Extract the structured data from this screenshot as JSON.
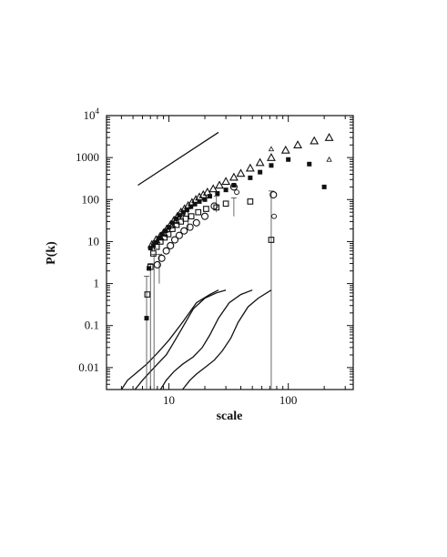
{
  "chart_data": {
    "type": "scatter",
    "xlabel": "scale",
    "ylabel": "P(k)",
    "xscale": "log",
    "yscale": "log",
    "xlim": [
      3,
      350
    ],
    "ylim": [
      0.003,
      10000
    ],
    "grid": false,
    "x_ticks": [
      {
        "value": 10,
        "label": "10"
      },
      {
        "value": 100,
        "label": "100"
      }
    ],
    "y_ticks": [
      {
        "value": 10000,
        "label": "10",
        "sup": "4"
      },
      {
        "value": 1000,
        "label": "1000"
      },
      {
        "value": 100,
        "label": "100"
      },
      {
        "value": 10,
        "label": "10"
      },
      {
        "value": 1,
        "label": "1"
      },
      {
        "value": 0.1,
        "label": "0.1"
      },
      {
        "value": 0.01,
        "label": "0.01"
      }
    ],
    "series": [
      {
        "marker": "triangle-open",
        "x": [
          7.2,
          7.8,
          8.4,
          9.0,
          9.6,
          10.3,
          11.0,
          11.8,
          12.6,
          13.5,
          14.5,
          15.6,
          16.8,
          18.0,
          19.4,
          21.0,
          23.5,
          26.5,
          30,
          35,
          40,
          48,
          58,
          72,
          95,
          120,
          165,
          220
        ],
        "y": [
          8.5,
          11,
          13,
          16,
          20,
          25,
          32,
          40,
          50,
          60,
          72,
          85,
          100,
          115,
          130,
          150,
          180,
          220,
          270,
          340,
          420,
          560,
          760,
          1000,
          1500,
          2000,
          2500,
          3000
        ]
      },
      {
        "marker": "triangle-open-small",
        "x": [
          72,
          220
        ],
        "y": [
          1600,
          900
        ]
      },
      {
        "marker": "square-filled",
        "x": [
          6.5,
          6.8,
          7.0,
          7.4,
          7.8,
          8.3,
          8.8,
          9.4,
          10.0,
          10.7,
          11.5,
          12.3,
          13.2,
          14.2,
          15.3,
          16.5,
          18.0,
          20.0,
          22.0,
          25.5,
          30,
          35,
          48,
          58,
          72,
          100,
          150,
          200
        ],
        "y": [
          0.15,
          2.3,
          7,
          8,
          9.5,
          12,
          15,
          18,
          22,
          28,
          35,
          42,
          50,
          58,
          68,
          78,
          90,
          100,
          120,
          140,
          170,
          220,
          330,
          450,
          650,
          900,
          700,
          200
        ]
      },
      {
        "marker": "square-open",
        "x": [
          6.6,
          7.0,
          7.4,
          7.9,
          8.5,
          9.2,
          9.9,
          10.7,
          11.6,
          12.6,
          13.8,
          15.4,
          17.6,
          20.5,
          25,
          30,
          48,
          72
        ],
        "y": [
          0.55,
          2.5,
          5.2,
          7.5,
          10,
          12.5,
          15,
          20,
          25,
          30,
          35,
          40,
          50,
          60,
          65,
          80,
          90,
          11
        ]
      },
      {
        "marker": "circle-open",
        "x": [
          8.0,
          8.7,
          9.5,
          10.3,
          11.2,
          12.2,
          13.4,
          15.0,
          17.0,
          20.0,
          24.0,
          35,
          75
        ],
        "y": [
          2.8,
          4,
          6,
          8,
          11,
          14,
          18,
          22,
          28,
          40,
          70,
          200,
          130
        ]
      },
      {
        "marker": "circle-open-small",
        "x": [
          37,
          76
        ],
        "y": [
          150,
          40
        ]
      }
    ],
    "error_bars": [
      {
        "x": 6.5,
        "ylow": 0.003,
        "yhigh": 1.5
      },
      {
        "x": 7.0,
        "ylow": 0.003,
        "yhigh": 3.0
      },
      {
        "x": 7.5,
        "ylow": 0.003,
        "yhigh": 5.0
      },
      {
        "x": 8.3,
        "ylow": 1.0,
        "yhigh": 5.0
      },
      {
        "x": 14.5,
        "ylow": 20,
        "yhigh": 60
      },
      {
        "x": 25,
        "ylow": 50,
        "yhigh": 120
      },
      {
        "x": 35,
        "ylow": 40,
        "yhigh": 110
      },
      {
        "x": 72,
        "ylow": 0.003,
        "yhigh": 160
      }
    ],
    "lines": [
      {
        "x": [
          5.5,
          26
        ],
        "y": [
          220,
          4000
        ]
      },
      {
        "x": [
          4.0,
          4.5,
          5.5,
          6.5,
          8.0,
          10.0,
          13.0,
          17.0,
          22.0,
          26.0
        ],
        "y": [
          0.003,
          0.005,
          0.008,
          0.012,
          0.022,
          0.045,
          0.12,
          0.35,
          0.55,
          0.7
        ]
      },
      {
        "x": [
          5.2,
          6.0,
          7.0,
          8.0,
          9.5,
          11.0,
          13.0,
          16.0,
          20.0,
          25.0,
          30.0
        ],
        "y": [
          0.003,
          0.005,
          0.008,
          0.012,
          0.02,
          0.04,
          0.09,
          0.25,
          0.45,
          0.6,
          0.7
        ]
      },
      {
        "x": [
          8.5,
          9.5,
          11.0,
          13.0,
          16.0,
          19.0,
          22.0,
          26.0,
          32.0,
          40.0,
          50.0
        ],
        "y": [
          0.003,
          0.005,
          0.008,
          0.012,
          0.018,
          0.03,
          0.06,
          0.15,
          0.35,
          0.55,
          0.7
        ]
      },
      {
        "x": [
          13.0,
          15.0,
          17.0,
          20.0,
          24.0,
          28.0,
          33.0,
          38.0,
          46.0,
          56.0,
          72.0
        ],
        "y": [
          0.003,
          0.005,
          0.007,
          0.01,
          0.015,
          0.025,
          0.05,
          0.12,
          0.28,
          0.45,
          0.7
        ]
      }
    ]
  }
}
